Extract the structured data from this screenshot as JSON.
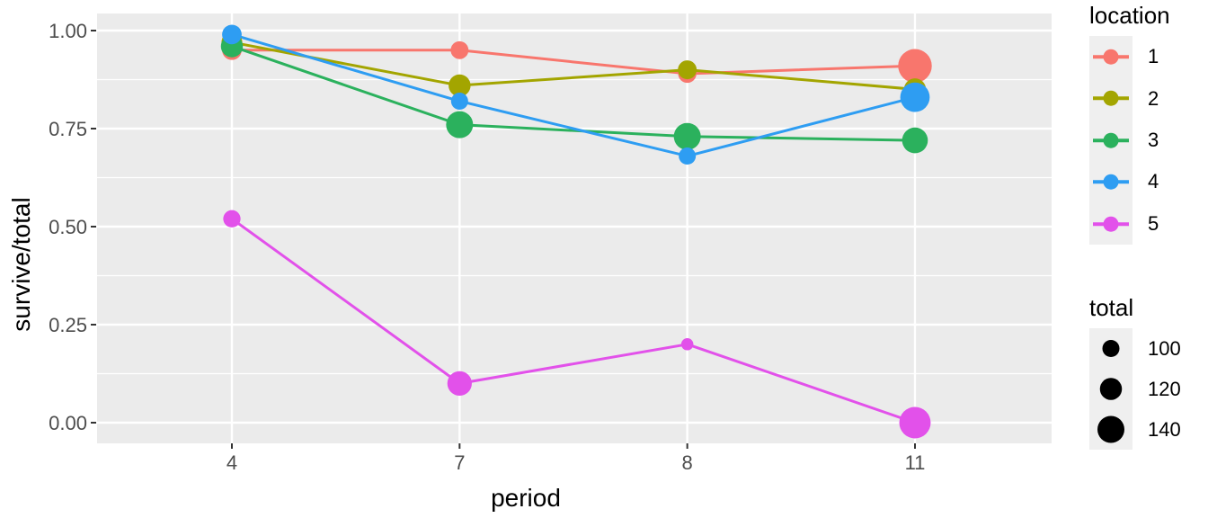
{
  "chart_data": {
    "type": "line-scatter-bubble",
    "title": "",
    "xlabel": "period",
    "ylabel": "survive/total",
    "x_categories": [
      "4",
      "7",
      "8",
      "11"
    ],
    "x_values": [
      4,
      7,
      8,
      11
    ],
    "ylim": [
      0.0,
      1.0
    ],
    "yticks": [
      0.0,
      0.25,
      0.5,
      0.75,
      1.0
    ],
    "ytick_labels": [
      "0.00",
      "0.25",
      "0.50",
      "0.75",
      "1.00"
    ],
    "yminor_ticks": [
      0.125,
      0.375,
      0.625,
      0.875
    ],
    "grid": "on",
    "series": [
      {
        "name": "1",
        "color": "#F8766D",
        "values": [
          0.95,
          0.95,
          0.89,
          0.91
        ],
        "totals": [
          110,
          103,
          105,
          167
        ]
      },
      {
        "name": "2",
        "color": "#A3A500",
        "values": [
          0.97,
          0.86,
          0.9,
          0.85
        ],
        "totals": [
          115,
          120,
          107,
          120
        ]
      },
      {
        "name": "3",
        "color": "#2BB15D",
        "values": [
          0.96,
          0.76,
          0.73,
          0.72
        ],
        "totals": [
          120,
          140,
          140,
          135
        ]
      },
      {
        "name": "4",
        "color": "#2E9DF2",
        "values": [
          0.99,
          0.82,
          0.68,
          0.83
        ],
        "totals": [
          110,
          100,
          100,
          150
        ]
      },
      {
        "name": "5",
        "color": "#E251EA",
        "values": [
          0.52,
          0.1,
          0.2,
          0.0
        ],
        "totals": [
          101,
          130,
          80,
          158
        ]
      }
    ],
    "legends": {
      "color": {
        "title": "location",
        "labels": [
          "1",
          "2",
          "3",
          "4",
          "5"
        ],
        "position": "right"
      },
      "size": {
        "title": "total",
        "labels": [
          "100",
          "120",
          "140"
        ],
        "values": [
          100,
          120,
          140
        ],
        "position": "right"
      }
    },
    "style": {
      "panel_bg": "#EBEBEB",
      "grid_color": "#FFFFFF",
      "legend_key_bg": "#EFEFEF",
      "tick_label_color": "#4D4D4D",
      "tick_mark_color": "#333333",
      "axis_title_color": "#000000"
    }
  }
}
